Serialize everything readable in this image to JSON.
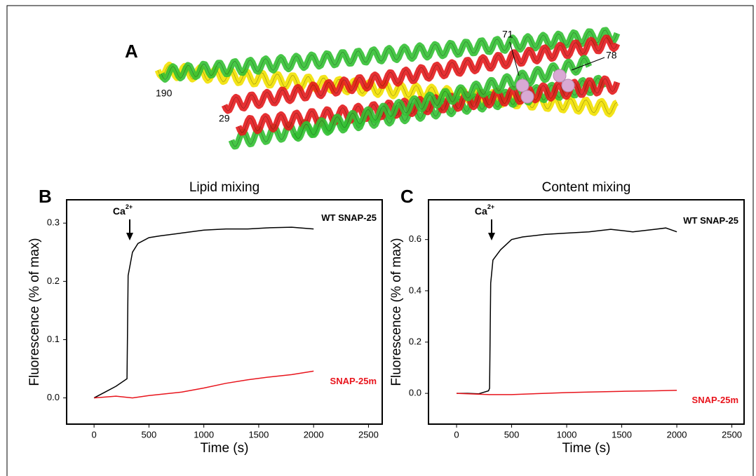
{
  "panel_a": {
    "label": "A",
    "annotations": [
      "71",
      "78",
      "190",
      "29"
    ]
  },
  "chart_data": [
    {
      "type": "line",
      "panel_label": "B",
      "title": "Lipid mixing",
      "x_label": "Time (s)",
      "y_label": "Fluorescence (% of max)",
      "annotation": {
        "text": "Ca",
        "superscript": "2+"
      },
      "xlim": [
        -250,
        2625
      ],
      "ylim": [
        -0.045,
        0.34
      ],
      "xticks": [
        0,
        500,
        1000,
        1500,
        2000,
        2500
      ],
      "yticks": [
        {
          "value": 0,
          "label": "0.0"
        },
        0.1,
        0.2,
        0.3
      ],
      "series": [
        {
          "name": "WT SNAP-25",
          "color": "#000000",
          "x": [
            0,
            100,
            200,
            300,
            310,
            350,
            400,
            500,
            600,
            800,
            1000,
            1200,
            1400,
            1600,
            1800,
            2000
          ],
          "values": [
            0,
            0.01,
            0.02,
            0.033,
            0.21,
            0.25,
            0.265,
            0.275,
            0.278,
            0.283,
            0.288,
            0.29,
            0.29,
            0.292,
            0.293,
            0.29
          ]
        },
        {
          "name": "SNAP-25m",
          "color": "#e8141c",
          "x": [
            0,
            200,
            350,
            500,
            800,
            1000,
            1200,
            1400,
            1600,
            1800,
            2000
          ],
          "values": [
            0,
            0.003,
            0,
            0.004,
            0.01,
            0.017,
            0.025,
            0.031,
            0.036,
            0.04,
            0.046
          ]
        }
      ]
    },
    {
      "type": "line",
      "panel_label": "C",
      "title": "Content mixing",
      "x_label": "Time (s)",
      "y_label": "Fluorescence (% of max)",
      "annotation": {
        "text": "Ca",
        "superscript": "2+"
      },
      "xlim": [
        -255,
        2611
      ],
      "ylim": [
        -0.12,
        0.755
      ],
      "xticks": [
        0,
        500,
        1000,
        1500,
        2000,
        2500
      ],
      "yticks": [
        {
          "value": 0,
          "label": "0.0"
        },
        0.2,
        0.4,
        0.6
      ],
      "series": [
        {
          "name": "WT SNAP-25",
          "color": "#000000",
          "x": [
            0,
            100,
            200,
            290,
            300,
            310,
            330,
            400,
            500,
            600,
            800,
            1000,
            1200,
            1400,
            1600,
            1800,
            1900,
            2000
          ],
          "values": [
            0,
            0,
            -0.002,
            0.01,
            0.02,
            0.43,
            0.52,
            0.56,
            0.6,
            0.61,
            0.62,
            0.625,
            0.63,
            0.64,
            0.63,
            0.64,
            0.645,
            0.63
          ]
        },
        {
          "name": "SNAP-25m",
          "color": "#e8141c",
          "x": [
            0,
            300,
            500,
            800,
            1000,
            1200,
            1500,
            1800,
            2000
          ],
          "values": [
            0,
            -0.005,
            -0.005,
            0,
            0.003,
            0.005,
            0.008,
            0.01,
            0.012
          ]
        }
      ]
    }
  ]
}
